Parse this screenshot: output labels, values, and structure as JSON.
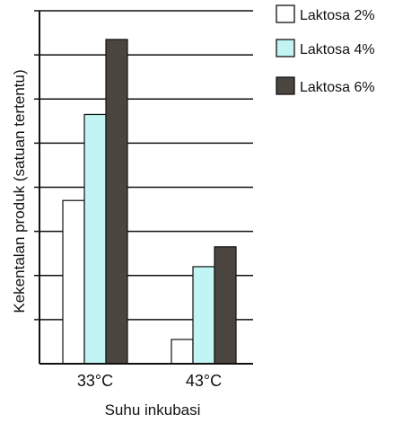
{
  "chart_data": {
    "type": "bar",
    "title": "",
    "xlabel": "Suhu inkubasi",
    "ylabel": "Kekentalan produk (satuan tertentu)",
    "categories": [
      "33°C",
      "43°C"
    ],
    "ylim": [
      0,
      8
    ],
    "y_ticks_labeled": false,
    "grid": true,
    "legend_position": "top-right",
    "series": [
      {
        "name": "Laktosa 2%",
        "values": [
          3.7,
          0.55
        ],
        "color": "#ffffff"
      },
      {
        "name": "Laktosa 4%",
        "values": [
          5.65,
          2.2
        ],
        "color": "#c2f4f4"
      },
      {
        "name": "Laktosa 6%",
        "values": [
          7.35,
          2.65
        ],
        "color": "#4b4540"
      }
    ]
  }
}
